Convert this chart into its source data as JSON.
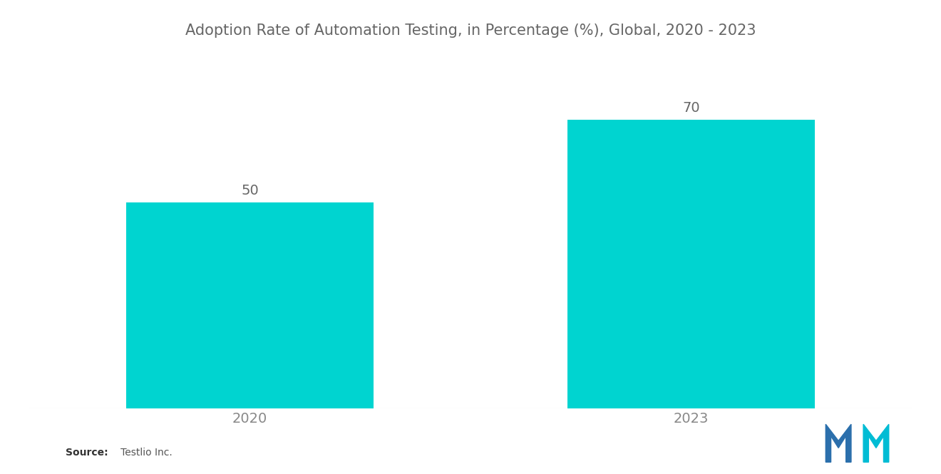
{
  "title": "Adoption Rate of Automation Testing, in Percentage (%), Global, 2020 - 2023",
  "categories": [
    "2020",
    "2023"
  ],
  "values": [
    50,
    70
  ],
  "bar_color": "#00D4D0",
  "background_color": "#ffffff",
  "title_fontsize": 15,
  "label_fontsize": 14,
  "tick_fontsize": 14,
  "source_bold": "Source:",
  "source_rest": "   Testlio Inc.",
  "ylim": [
    0,
    85
  ],
  "bar_width": 0.28,
  "x_positions": [
    0.25,
    0.75
  ],
  "xlim": [
    0.0,
    1.0
  ],
  "title_color": "#666666",
  "tick_color": "#888888",
  "label_color": "#666666",
  "logo_blue": "#2B6FAC",
  "logo_teal": "#00BCD4"
}
